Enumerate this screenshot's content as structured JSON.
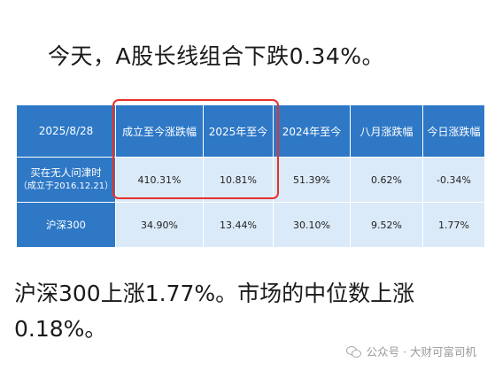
{
  "headline": "今天，A股长线组合下跌0.34%。",
  "table": {
    "corner": "2025/8/28",
    "columns": [
      "成立至今涨跌幅",
      "2025年至今",
      "2024年至今",
      "八月涨跌幅",
      "今日涨跌幅"
    ],
    "rows": [
      {
        "name": "买在无人问津时",
        "sub": "（成立于2016.12.21）",
        "cells": [
          "410.31%",
          "10.81%",
          "51.39%",
          "0.62%",
          "-0.34%"
        ]
      },
      {
        "name": "沪深300",
        "sub": "",
        "cells": [
          "34.90%",
          "13.44%",
          "30.10%",
          "9.52%",
          "1.77%"
        ]
      }
    ],
    "colors": {
      "header_bg": "#2e78c6",
      "cell_bg": "#dbeaf8",
      "highlight": "#e8312c"
    }
  },
  "paragraph": {
    "line1": "沪深300上涨1.77%。市场的中位数上涨",
    "line2": "0.18%。"
  },
  "watermark": {
    "icon": "wechat-icon",
    "text": "公众号 · 大财可富司机"
  }
}
